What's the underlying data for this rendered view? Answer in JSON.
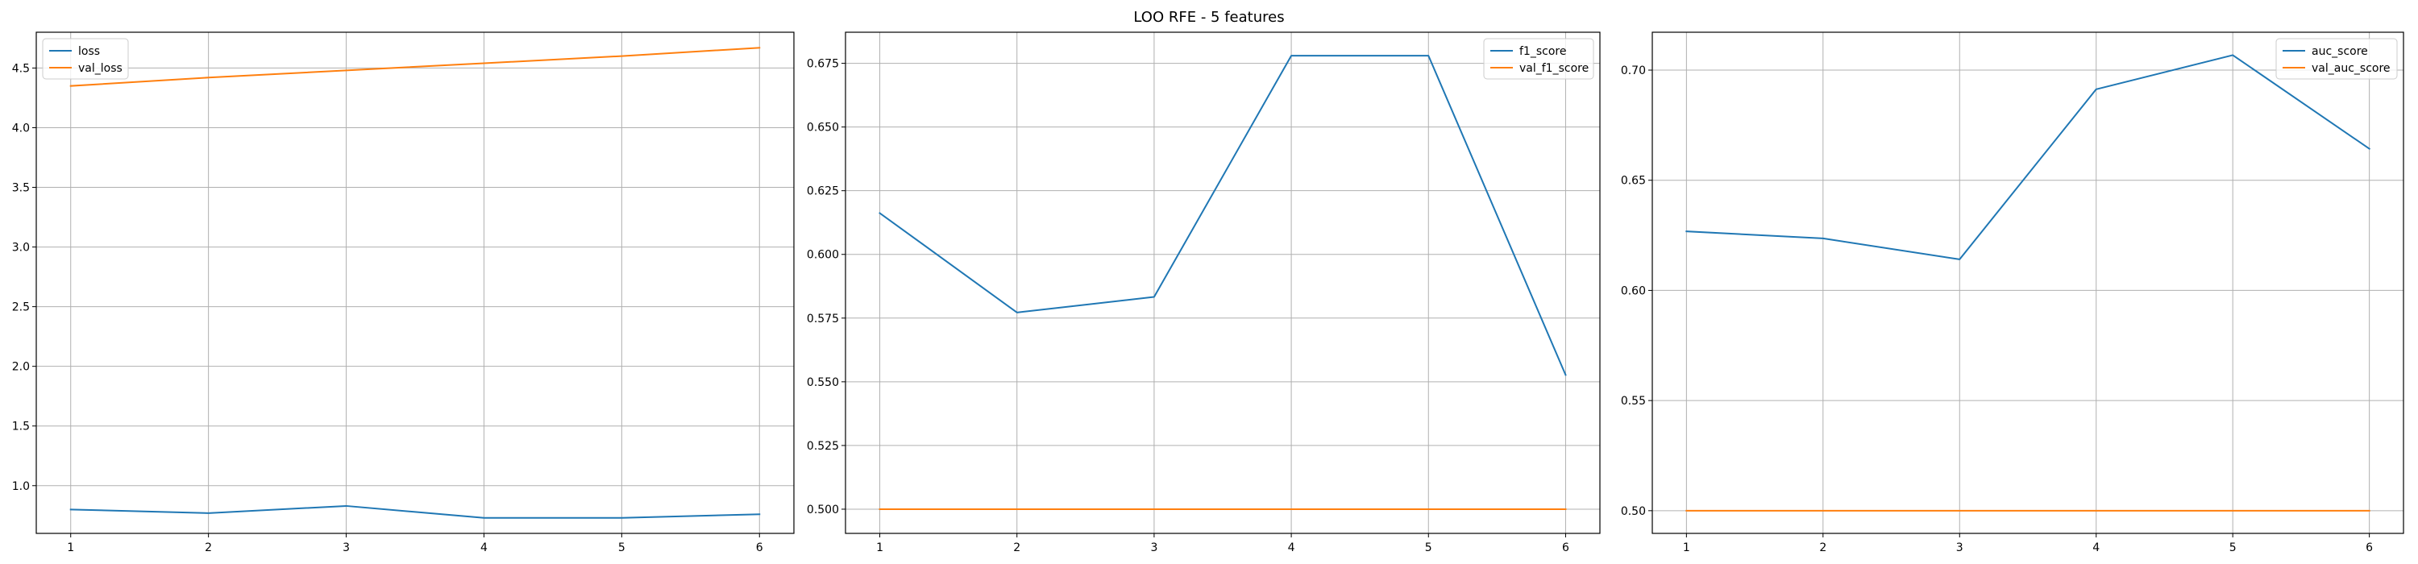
{
  "figure": {
    "title": "LOO RFE - 5 features"
  },
  "colors": {
    "series_1": "#1f77b4",
    "series_2": "#ff7f0e",
    "grid": "#b0b0b0",
    "axes": "#000000"
  },
  "chart_data": [
    {
      "type": "line",
      "x": [
        1,
        2,
        3,
        4,
        5,
        6
      ],
      "xlim": [
        0.75,
        6.25
      ],
      "ylim": [
        0.6,
        4.8
      ],
      "xticks": [
        1,
        2,
        3,
        4,
        5,
        6
      ],
      "yticks": [
        1.0,
        1.5,
        2.0,
        2.5,
        3.0,
        3.5,
        4.0,
        4.5
      ],
      "ytick_labels": [
        "1.0",
        "1.5",
        "2.0",
        "2.5",
        "3.0",
        "3.5",
        "4.0",
        "4.5"
      ],
      "grid": true,
      "legend_position": "upper-left",
      "series": [
        {
          "name": "loss",
          "color": "#1f77b4",
          "values": [
            0.8,
            0.77,
            0.83,
            0.73,
            0.73,
            0.76
          ]
        },
        {
          "name": "val_loss",
          "color": "#ff7f0e",
          "values": [
            4.35,
            4.42,
            4.48,
            4.54,
            4.6,
            4.67
          ]
        }
      ]
    },
    {
      "type": "line",
      "x": [
        1,
        2,
        3,
        4,
        5,
        6
      ],
      "xlim": [
        0.75,
        6.25
      ],
      "ylim": [
        0.4905,
        0.6872
      ],
      "xticks": [
        1,
        2,
        3,
        4,
        5,
        6
      ],
      "yticks": [
        0.5,
        0.525,
        0.55,
        0.575,
        0.6,
        0.625,
        0.65,
        0.675
      ],
      "ytick_labels": [
        "0.500",
        "0.525",
        "0.550",
        "0.575",
        "0.600",
        "0.625",
        "0.650",
        "0.675"
      ],
      "grid": true,
      "legend_position": "upper-right",
      "series": [
        {
          "name": "f1_score",
          "color": "#1f77b4",
          "values": [
            0.6162,
            0.5772,
            0.5833,
            0.678,
            0.678,
            0.5527
          ]
        },
        {
          "name": "val_f1_score",
          "color": "#ff7f0e",
          "values": [
            0.5,
            0.5,
            0.5,
            0.5,
            0.5,
            0.5
          ]
        }
      ]
    },
    {
      "type": "line",
      "x": [
        1,
        2,
        3,
        4,
        5,
        6
      ],
      "xlim": [
        0.75,
        6.25
      ],
      "ylim": [
        0.4897,
        0.7172
      ],
      "xticks": [
        1,
        2,
        3,
        4,
        5,
        6
      ],
      "yticks": [
        0.5,
        0.55,
        0.6,
        0.65,
        0.7
      ],
      "ytick_labels": [
        "0.50",
        "0.55",
        "0.60",
        "0.65",
        "0.70"
      ],
      "grid": true,
      "legend_position": "upper-right",
      "series": [
        {
          "name": "auc_score",
          "color": "#1f77b4",
          "values": [
            0.6268,
            0.6236,
            0.6141,
            0.6913,
            0.7068,
            0.6643
          ]
        },
        {
          "name": "val_auc_score",
          "color": "#ff7f0e",
          "values": [
            0.5,
            0.5,
            0.5,
            0.5,
            0.5,
            0.5
          ]
        }
      ]
    }
  ]
}
